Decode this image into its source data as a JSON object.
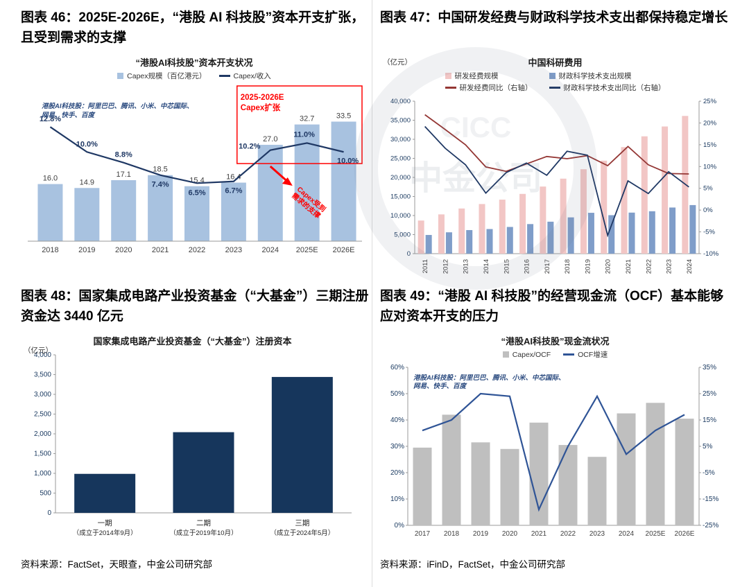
{
  "headings": {
    "fig46": "图表 46：2025E-2026E，“港股 AI 科技股”资本开支扩张，且受到需求的支撑",
    "fig47": "图表 47：中国研发经费与财政科学技术支出都保持稳定增长",
    "fig48": "图表 48：国家集成电路产业投资基金（“大基金”）三期注册资金达 3440 亿元",
    "fig49": "图表 49：“港股 AI 科技股”的经营现金流（OCF）基本能够应对资本开支的压力"
  },
  "sources": {
    "left": "资料来源：FactSet，天眼查，中金公司研究部",
    "right": "资料来源：iFinD，FactSet，中金公司研究部"
  },
  "watermark": {
    "cn": "中金公司",
    "en": "CICC"
  },
  "chart_data": [
    {
      "id": "hk-ai-capex",
      "type": "bar-line",
      "title": "“港股AI科技股”资本开支状况",
      "note": "港股AI科技股：阿里巴巴、腾讯、小米、中芯国际、\n网易、快手、百度",
      "categories": [
        "2018",
        "2019",
        "2020",
        "2021",
        "2022",
        "2023",
        "2024",
        "2025E",
        "2026E"
      ],
      "bar_series": {
        "name": "Capex规模（百亿港元）",
        "color": "#a8c2e0",
        "values": [
          16.0,
          14.9,
          17.1,
          18.5,
          15.4,
          16.4,
          27.0,
          32.7,
          33.5
        ]
      },
      "line_series": {
        "name": "Capex/收入",
        "color": "#1f3864",
        "values_pct": [
          12.8,
          10.0,
          8.8,
          7.4,
          6.5,
          6.7,
          10.2,
          11.0,
          10.0
        ]
      },
      "bar_axis_max": 40,
      "line_axis_max": 16,
      "annotations": {
        "box_label": "2025-2026E\nCapex扩张",
        "arrow_label": "Capex受到\n需求的支撑",
        "color": "#ff0000"
      }
    },
    {
      "id": "china-rnd",
      "type": "grouped-bar-line-dual-axis",
      "title": "中国科研费用",
      "unit_label": "（亿元）",
      "categories": [
        "2011",
        "2012",
        "2013",
        "2014",
        "2015",
        "2016",
        "2017",
        "2018",
        "2019",
        "2020",
        "2021",
        "2022",
        "2023",
        "2024"
      ],
      "bar_series": [
        {
          "name": "研发经费规模",
          "color": "#f2c6c5",
          "values": [
            8687,
            10298,
            11847,
            13016,
            14170,
            15677,
            17606,
            19678,
            22144,
            24393,
            27956,
            30783,
            33357,
            36130
          ]
        },
        {
          "name": "财政科学技术支出规模",
          "color": "#7f9dc9",
          "values": [
            4903,
            5600,
            6185,
            6454,
            7006,
            7761,
            8384,
            9518,
            10717,
            10095,
            10767,
            11128,
            12104,
            12743
          ]
        }
      ],
      "line_series": [
        {
          "name": "研发经费同比（右轴）",
          "color": "#943634",
          "values_pct": [
            21.9,
            18.5,
            15.0,
            9.9,
            8.9,
            10.6,
            12.3,
            11.8,
            12.5,
            10.2,
            14.6,
            10.4,
            8.4,
            8.3
          ]
        },
        {
          "name": "财政科学技术支出同比（右轴）",
          "color": "#1f3864",
          "values_pct": [
            19.2,
            14.2,
            10.4,
            3.9,
            8.6,
            10.8,
            8.0,
            13.5,
            12.6,
            -5.8,
            6.7,
            3.8,
            8.8,
            5.3
          ]
        }
      ],
      "left_axis": {
        "min": 0,
        "max": 40000,
        "step": 5000
      },
      "right_axis": {
        "min": -10,
        "max": 25,
        "step": 5,
        "suffix": "%"
      }
    },
    {
      "id": "big-fund",
      "type": "bar",
      "title": "国家集成电路产业投资基金（“大基金”）注册资本",
      "unit_label": "（亿元）",
      "categories": [
        "一期",
        "二期",
        "三期"
      ],
      "category_sublabels": [
        "（成立于2014年9月）",
        "（成立于2019年10月）",
        "（成立于2024年5月）"
      ],
      "values": [
        987,
        2042,
        3440
      ],
      "bar_color": "#16365c",
      "left_axis": {
        "min": 0,
        "max": 4000,
        "step": 500
      }
    },
    {
      "id": "hk-ai-ocf",
      "type": "bar-line-dual-axis",
      "title": "“港股AI科技股”现金流状况",
      "note": "港股AI科技股：阿里巴巴、腾讯、小米、中芯国际、\n网易、快手、百度",
      "categories": [
        "2017",
        "2018",
        "2019",
        "2020",
        "2021",
        "2022",
        "2023",
        "2024",
        "2025E",
        "2026E"
      ],
      "bar_series": {
        "name": "Capex/OCF",
        "color": "#bfbfbf",
        "values_pct": [
          29.5,
          42.0,
          31.5,
          29.0,
          39.0,
          30.5,
          26.0,
          42.5,
          46.5,
          40.5
        ]
      },
      "line_series": {
        "name": "OCF增速",
        "color": "#2f5496",
        "values_pct": [
          11,
          15,
          25,
          24,
          -19,
          5,
          24,
          2,
          11,
          17
        ]
      },
      "left_axis": {
        "min": 0,
        "max": 60,
        "step": 10,
        "suffix": "%"
      },
      "right_axis": {
        "min": -25,
        "max": 35,
        "step": 10,
        "suffix": "%"
      }
    }
  ]
}
